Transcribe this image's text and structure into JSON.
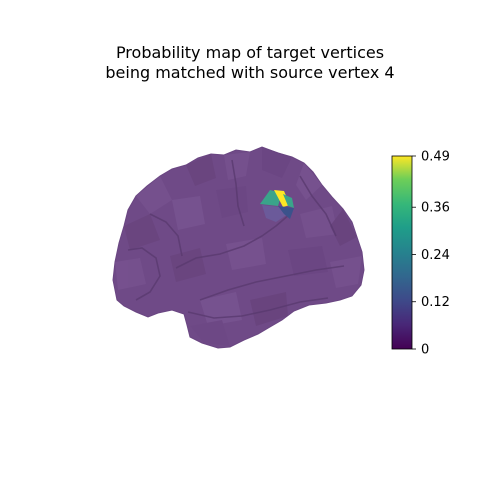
{
  "title_line1": "Probability map of target vertices",
  "title_line2": "being matched with source vertex 4",
  "chart_data": {
    "type": "heatmap",
    "title": "Probability map of target vertices being matched with source vertex 4",
    "description_kind": "3D brain surface mesh colored by probability",
    "colormap": "viridis",
    "colorbar": {
      "range": [
        0,
        0.49
      ],
      "ticks": [
        0,
        0.12,
        0.24,
        0.36,
        0.49
      ],
      "tick_labels": [
        "0",
        "0.12",
        "0.24",
        "0.36",
        "0.49"
      ],
      "placement": "right"
    },
    "vertex_values": {
      "background": 0.0,
      "hotspot_max": 0.49,
      "hotspot_mid": 0.3,
      "hotspot_low": 0.1
    },
    "colors": {
      "base_surface": "#6f4a87",
      "hotspot_yellow": "#fde725",
      "hotspot_teal": "#3aa48a",
      "hotspot_blue": "#3b528b"
    }
  }
}
